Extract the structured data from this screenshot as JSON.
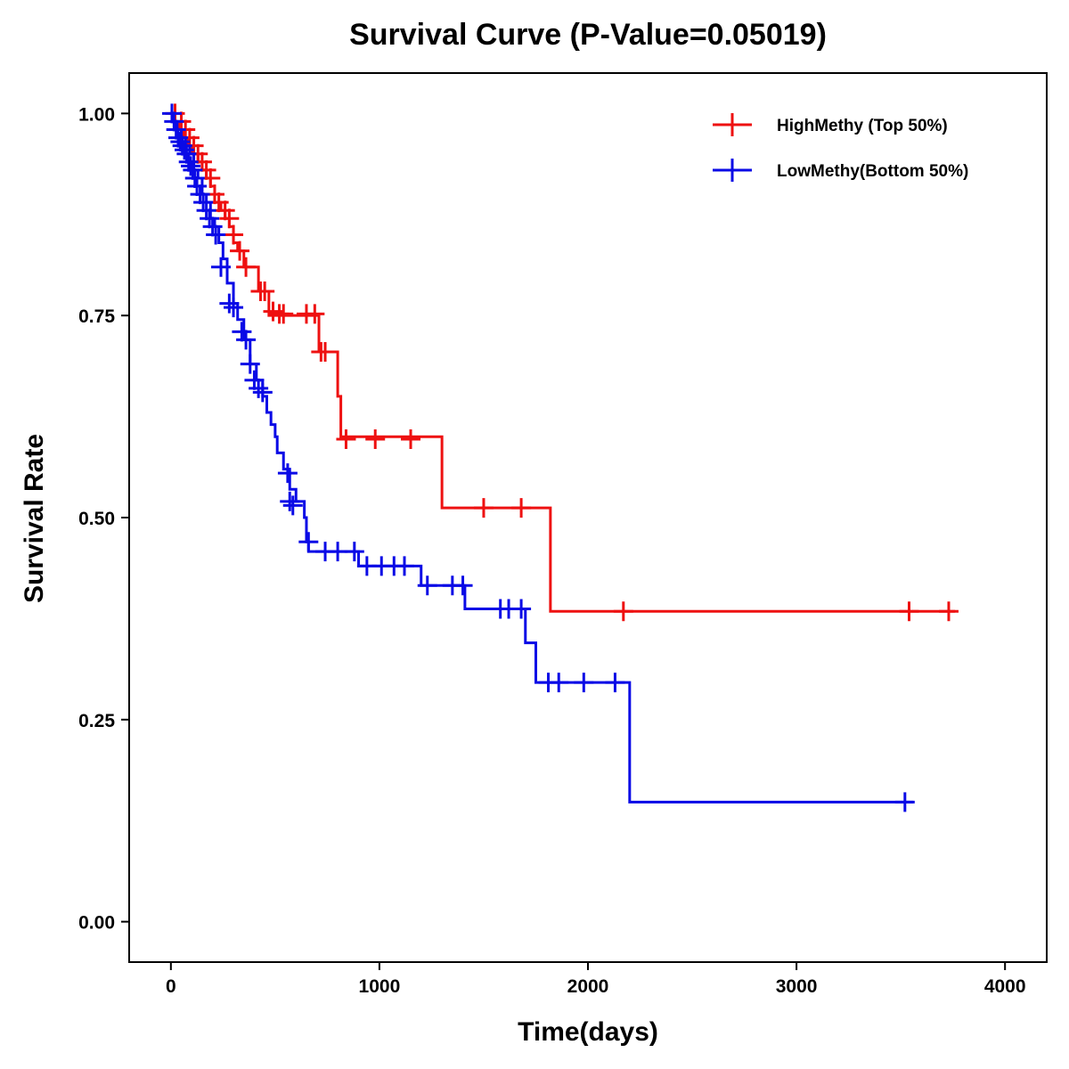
{
  "chart_data": {
    "type": "line",
    "subtype": "kaplan-meier-step",
    "title": "Survival Curve (P-Value=0.05019)",
    "xlabel": "Time(days)",
    "ylabel": "Survival Rate",
    "xlim": [
      -200,
      4200
    ],
    "ylim": [
      -0.05,
      1.05
    ],
    "xticks": [
      0,
      1000,
      2000,
      3000,
      4000
    ],
    "xtick_labels": [
      "0",
      "1000",
      "2000",
      "3000",
      "4000"
    ],
    "yticks": [
      0,
      0.25,
      0.5,
      0.75,
      1.0
    ],
    "ytick_labels": [
      "0.00",
      "0.25",
      "0.50",
      "0.75",
      "1.00"
    ],
    "grid": false,
    "legend_position": "top-right",
    "series": [
      {
        "name": "HighMethy (Top 50%)",
        "color": "#ee1111",
        "steps": [
          [
            -5,
            1.0
          ],
          [
            20,
            0.99
          ],
          [
            40,
            0.98
          ],
          [
            60,
            0.97
          ],
          [
            80,
            0.96
          ],
          [
            100,
            0.95
          ],
          [
            130,
            0.94
          ],
          [
            150,
            0.93
          ],
          [
            170,
            0.92
          ],
          [
            190,
            0.91
          ],
          [
            210,
            0.89
          ],
          [
            240,
            0.88
          ],
          [
            260,
            0.87
          ],
          [
            280,
            0.86
          ],
          [
            300,
            0.84
          ],
          [
            320,
            0.83
          ],
          [
            350,
            0.81
          ],
          [
            420,
            0.78
          ],
          [
            470,
            0.75
          ],
          [
            560,
            0.75
          ],
          [
            710,
            0.705
          ],
          [
            780,
            0.705
          ],
          [
            800,
            0.65
          ],
          [
            815,
            0.6
          ],
          [
            1300,
            0.512
          ],
          [
            1820,
            0.384
          ],
          [
            3760,
            0.384
          ]
        ],
        "censored": [
          [
            20,
            1.0
          ],
          [
            50,
            0.99
          ],
          [
            70,
            0.98
          ],
          [
            90,
            0.97
          ],
          [
            110,
            0.96
          ],
          [
            130,
            0.95
          ],
          [
            150,
            0.94
          ],
          [
            170,
            0.93
          ],
          [
            190,
            0.92
          ],
          [
            210,
            0.9
          ],
          [
            230,
            0.89
          ],
          [
            260,
            0.88
          ],
          [
            280,
            0.87
          ],
          [
            300,
            0.85
          ],
          [
            330,
            0.83
          ],
          [
            360,
            0.81
          ],
          [
            430,
            0.78
          ],
          [
            450,
            0.78
          ],
          [
            490,
            0.755
          ],
          [
            520,
            0.752
          ],
          [
            540,
            0.752
          ],
          [
            650,
            0.752
          ],
          [
            690,
            0.752
          ],
          [
            720,
            0.705
          ],
          [
            740,
            0.705
          ],
          [
            840,
            0.597
          ],
          [
            980,
            0.597
          ],
          [
            1150,
            0.597
          ],
          [
            1500,
            0.512
          ],
          [
            1680,
            0.512
          ],
          [
            2170,
            0.384
          ],
          [
            3540,
            0.384
          ],
          [
            3730,
            0.384
          ]
        ]
      },
      {
        "name": "LowMethy(Bottom 50%)",
        "color": "#0a0ae6",
        "steps": [
          [
            -5,
            1.0
          ],
          [
            10,
            0.99
          ],
          [
            30,
            0.98
          ],
          [
            50,
            0.97
          ],
          [
            70,
            0.96
          ],
          [
            90,
            0.95
          ],
          [
            110,
            0.93
          ],
          [
            130,
            0.92
          ],
          [
            150,
            0.9
          ],
          [
            170,
            0.89
          ],
          [
            190,
            0.87
          ],
          [
            210,
            0.86
          ],
          [
            230,
            0.84
          ],
          [
            250,
            0.82
          ],
          [
            270,
            0.79
          ],
          [
            300,
            0.765
          ],
          [
            320,
            0.745
          ],
          [
            350,
            0.72
          ],
          [
            380,
            0.69
          ],
          [
            410,
            0.67
          ],
          [
            440,
            0.65
          ],
          [
            460,
            0.63
          ],
          [
            480,
            0.615
          ],
          [
            500,
            0.6
          ],
          [
            510,
            0.58
          ],
          [
            540,
            0.56
          ],
          [
            570,
            0.535
          ],
          [
            600,
            0.52
          ],
          [
            640,
            0.5
          ],
          [
            650,
            0.47
          ],
          [
            660,
            0.458
          ],
          [
            900,
            0.44
          ],
          [
            1200,
            0.416
          ],
          [
            1410,
            0.387
          ],
          [
            1700,
            0.345
          ],
          [
            1750,
            0.296
          ],
          [
            2200,
            0.148
          ],
          [
            3560,
            0.148
          ]
        ],
        "censored": [
          [
            5,
            1.0
          ],
          [
            15,
            0.99
          ],
          [
            25,
            0.98
          ],
          [
            35,
            0.97
          ],
          [
            45,
            0.965
          ],
          [
            55,
            0.96
          ],
          [
            65,
            0.955
          ],
          [
            75,
            0.95
          ],
          [
            85,
            0.94
          ],
          [
            95,
            0.935
          ],
          [
            105,
            0.93
          ],
          [
            115,
            0.92
          ],
          [
            125,
            0.91
          ],
          [
            140,
            0.9
          ],
          [
            155,
            0.89
          ],
          [
            170,
            0.88
          ],
          [
            185,
            0.87
          ],
          [
            200,
            0.86
          ],
          [
            215,
            0.85
          ],
          [
            240,
            0.81
          ],
          [
            280,
            0.765
          ],
          [
            300,
            0.76
          ],
          [
            340,
            0.73
          ],
          [
            360,
            0.72
          ],
          [
            380,
            0.69
          ],
          [
            400,
            0.67
          ],
          [
            420,
            0.66
          ],
          [
            440,
            0.655
          ],
          [
            560,
            0.555
          ],
          [
            570,
            0.52
          ],
          [
            585,
            0.515
          ],
          [
            660,
            0.47
          ],
          [
            740,
            0.458
          ],
          [
            800,
            0.458
          ],
          [
            880,
            0.458
          ],
          [
            940,
            0.44
          ],
          [
            1010,
            0.44
          ],
          [
            1070,
            0.44
          ],
          [
            1120,
            0.44
          ],
          [
            1230,
            0.416
          ],
          [
            1350,
            0.416
          ],
          [
            1400,
            0.416
          ],
          [
            1580,
            0.387
          ],
          [
            1620,
            0.387
          ],
          [
            1680,
            0.387
          ],
          [
            1810,
            0.296
          ],
          [
            1860,
            0.296
          ],
          [
            1980,
            0.296
          ],
          [
            2130,
            0.296
          ],
          [
            3520,
            0.148
          ]
        ]
      }
    ]
  }
}
